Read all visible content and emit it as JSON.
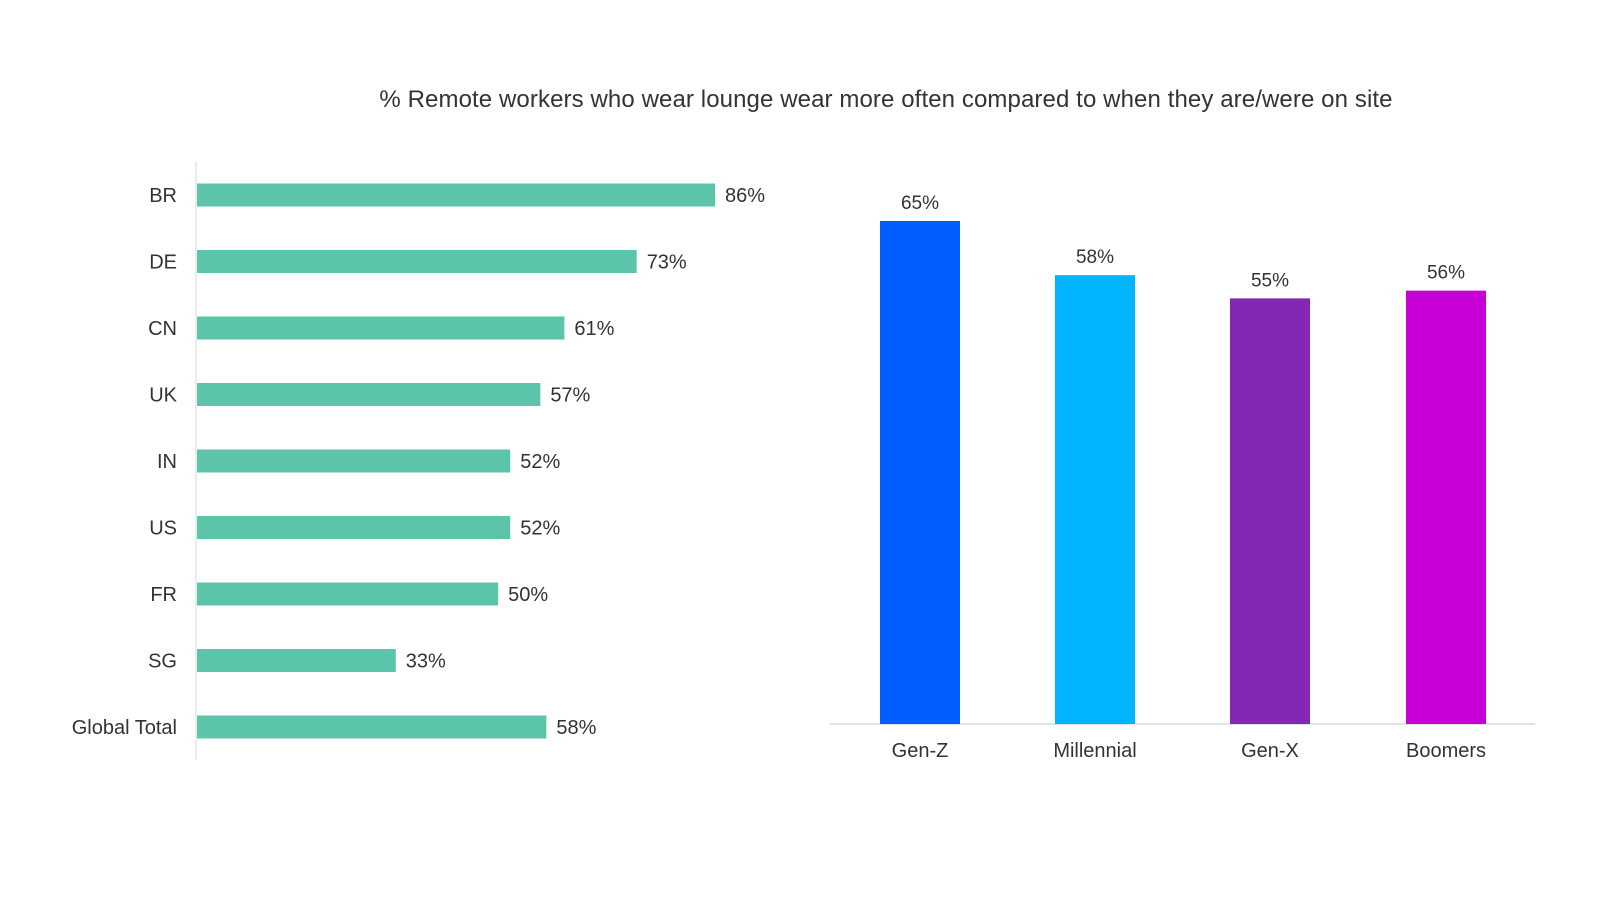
{
  "title": "% Remote workers who wear lounge wear more often compared to when they are/were on site",
  "chart_data": [
    {
      "type": "bar",
      "orientation": "horizontal",
      "categories": [
        "BR",
        "DE",
        "CN",
        "UK",
        "IN",
        "US",
        "FR",
        "SG",
        "Global Total"
      ],
      "values": [
        86,
        73,
        61,
        57,
        52,
        52,
        50,
        33,
        58
      ],
      "value_labels": [
        "86%",
        "73%",
        "61%",
        "57%",
        "52%",
        "52%",
        "50%",
        "33%",
        "58%"
      ],
      "xlim": [
        0,
        100
      ],
      "color": "#5BC4A9",
      "grid": false
    },
    {
      "type": "bar",
      "orientation": "vertical",
      "categories": [
        "Gen-Z",
        "Millennial",
        "Gen-X",
        "Boomers"
      ],
      "values": [
        65,
        58,
        55,
        56
      ],
      "value_labels": [
        "65%",
        "58%",
        "55%",
        "56%"
      ],
      "colors": [
        "#005EFF",
        "#00B4FF",
        "#8228B5",
        "#C800D8"
      ],
      "grid": false
    }
  ]
}
